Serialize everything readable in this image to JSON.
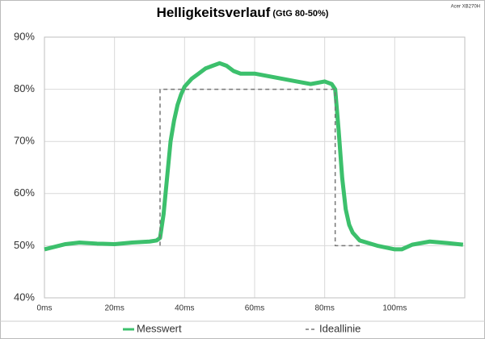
{
  "chart_data": {
    "type": "line",
    "title": "Helligkeitsverlauf",
    "subtitle": "(GtG 80-50%)",
    "annotation": "Acer XB270H",
    "xlim": [
      0,
      120
    ],
    "xticks": [
      {
        "value": 0,
        "label": "0ms"
      },
      {
        "value": 20,
        "label": "20ms"
      },
      {
        "value": 40,
        "label": "40ms"
      },
      {
        "value": 60,
        "label": "60ms"
      },
      {
        "value": 80,
        "label": "80ms"
      },
      {
        "value": 100,
        "label": "100ms"
      }
    ],
    "ylim": [
      40,
      90
    ],
    "yticks": [
      {
        "value": 40,
        "label": "40%"
      },
      {
        "value": 50,
        "label": "50%"
      },
      {
        "value": 60,
        "label": "60%"
      },
      {
        "value": 70,
        "label": "70%"
      },
      {
        "value": 80,
        "label": "80%"
      },
      {
        "value": 90,
        "label": "90%"
      }
    ],
    "grid": true,
    "legend": "bottom",
    "series": [
      {
        "name": "Messwert",
        "color": "#3cc06c",
        "style": "solid",
        "x": [
          0,
          3,
          6,
          10,
          15,
          20,
          25,
          30,
          32,
          33,
          34,
          35,
          36,
          37,
          38,
          39,
          40,
          42,
          44,
          46,
          48,
          50,
          52,
          54,
          56,
          60,
          64,
          68,
          72,
          76,
          80,
          82,
          83,
          84,
          85,
          86,
          87,
          88,
          90,
          95,
          100,
          102,
          105,
          110,
          115,
          119.5
        ],
        "values": [
          49.3,
          49.8,
          50.3,
          50.6,
          50.4,
          50.3,
          50.6,
          50.8,
          51,
          51.5,
          56,
          63,
          70,
          74,
          77,
          79,
          80.5,
          82,
          83,
          84,
          84.5,
          85,
          84.5,
          83.5,
          83,
          83,
          82.5,
          82,
          81.5,
          81,
          81.5,
          81,
          80,
          72,
          63,
          57,
          54,
          52.5,
          51,
          50,
          49.3,
          49.3,
          50.2,
          50.8,
          50.5,
          50.2
        ]
      },
      {
        "name": "Ideallinie",
        "color": "#777777",
        "style": "dashed",
        "x": [
          33,
          33,
          83,
          83,
          90
        ],
        "values": [
          50,
          80,
          80,
          50,
          50
        ]
      }
    ]
  }
}
